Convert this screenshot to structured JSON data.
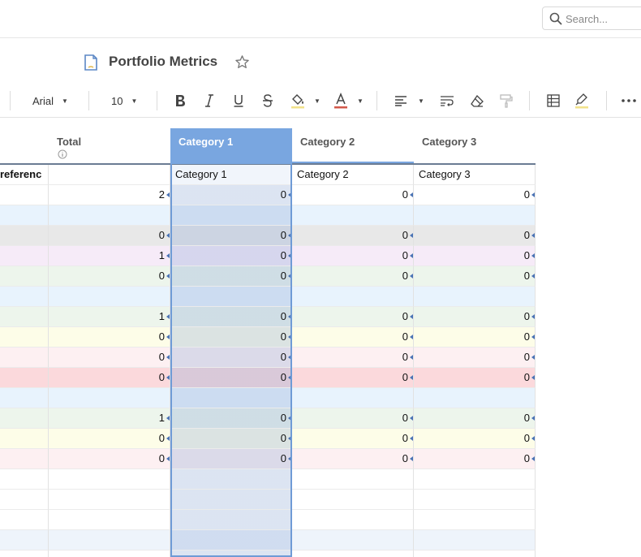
{
  "search": {
    "placeholder": "Search..."
  },
  "doc": {
    "title": "Portfolio Metrics"
  },
  "toolbar": {
    "font": "Arial",
    "size": "10"
  },
  "columns": [
    {
      "id": "ref",
      "label": "",
      "sub": "referenc"
    },
    {
      "id": "total",
      "label": "Total",
      "sub": ""
    },
    {
      "id": "cat1",
      "label": "Category 1",
      "sub": "Category 1"
    },
    {
      "id": "cat2",
      "label": "Category 2",
      "sub": "Category 2"
    },
    {
      "id": "cat3",
      "label": "Category 3",
      "sub": "Category 3"
    }
  ],
  "rows": [
    {
      "color": "#ffffff",
      "total": "2",
      "cat1": "0",
      "cat2": "0",
      "cat3": "0"
    },
    {
      "color": "#e8f3fd",
      "total": "",
      "cat1": "",
      "cat2": "",
      "cat3": ""
    },
    {
      "color": "#e8e8e8",
      "total": "0",
      "cat1": "0",
      "cat2": "0",
      "cat3": "0"
    },
    {
      "color": "#f6ebf8",
      "total": "1",
      "cat1": "0",
      "cat2": "0",
      "cat3": "0"
    },
    {
      "color": "#edf5ec",
      "total": "0",
      "cat1": "0",
      "cat2": "0",
      "cat3": "0"
    },
    {
      "color": "#e8f3fd",
      "total": "",
      "cat1": "",
      "cat2": "",
      "cat3": ""
    },
    {
      "color": "#edf5ec",
      "total": "1",
      "cat1": "0",
      "cat2": "0",
      "cat3": "0"
    },
    {
      "color": "#fdfde8",
      "total": "0",
      "cat1": "0",
      "cat2": "0",
      "cat3": "0"
    },
    {
      "color": "#fdf0f2",
      "total": "0",
      "cat1": "0",
      "cat2": "0",
      "cat3": "0"
    },
    {
      "color": "#fbd9dc",
      "total": "0",
      "cat1": "0",
      "cat2": "0",
      "cat3": "0"
    },
    {
      "color": "#e8f3fd",
      "total": "",
      "cat1": "",
      "cat2": "",
      "cat3": ""
    },
    {
      "color": "#edf5ec",
      "total": "1",
      "cat1": "0",
      "cat2": "0",
      "cat3": "0"
    },
    {
      "color": "#fdfde8",
      "total": "0",
      "cat1": "0",
      "cat2": "0",
      "cat3": "0"
    },
    {
      "color": "#fdf0f2",
      "total": "0",
      "cat1": "0",
      "cat2": "0",
      "cat3": "0"
    },
    {
      "color": "#ffffff",
      "total": "",
      "cat1": "",
      "cat2": "",
      "cat3": ""
    },
    {
      "color": "#ffffff",
      "total": "",
      "cat1": "",
      "cat2": "",
      "cat3": ""
    },
    {
      "color": "#ffffff",
      "total": "",
      "cat1": "",
      "cat2": "",
      "cat3": ""
    },
    {
      "color": "#eef4fb",
      "total": "",
      "cat1": "",
      "cat2": "",
      "cat3": ""
    },
    {
      "color": "#ffffff",
      "total": "",
      "cat1": "",
      "cat2": "",
      "cat3": ""
    }
  ],
  "colors": {
    "selection": "#79a6e0",
    "selection_fill": "#dbe5f5",
    "accent_text": "#d2584a"
  }
}
